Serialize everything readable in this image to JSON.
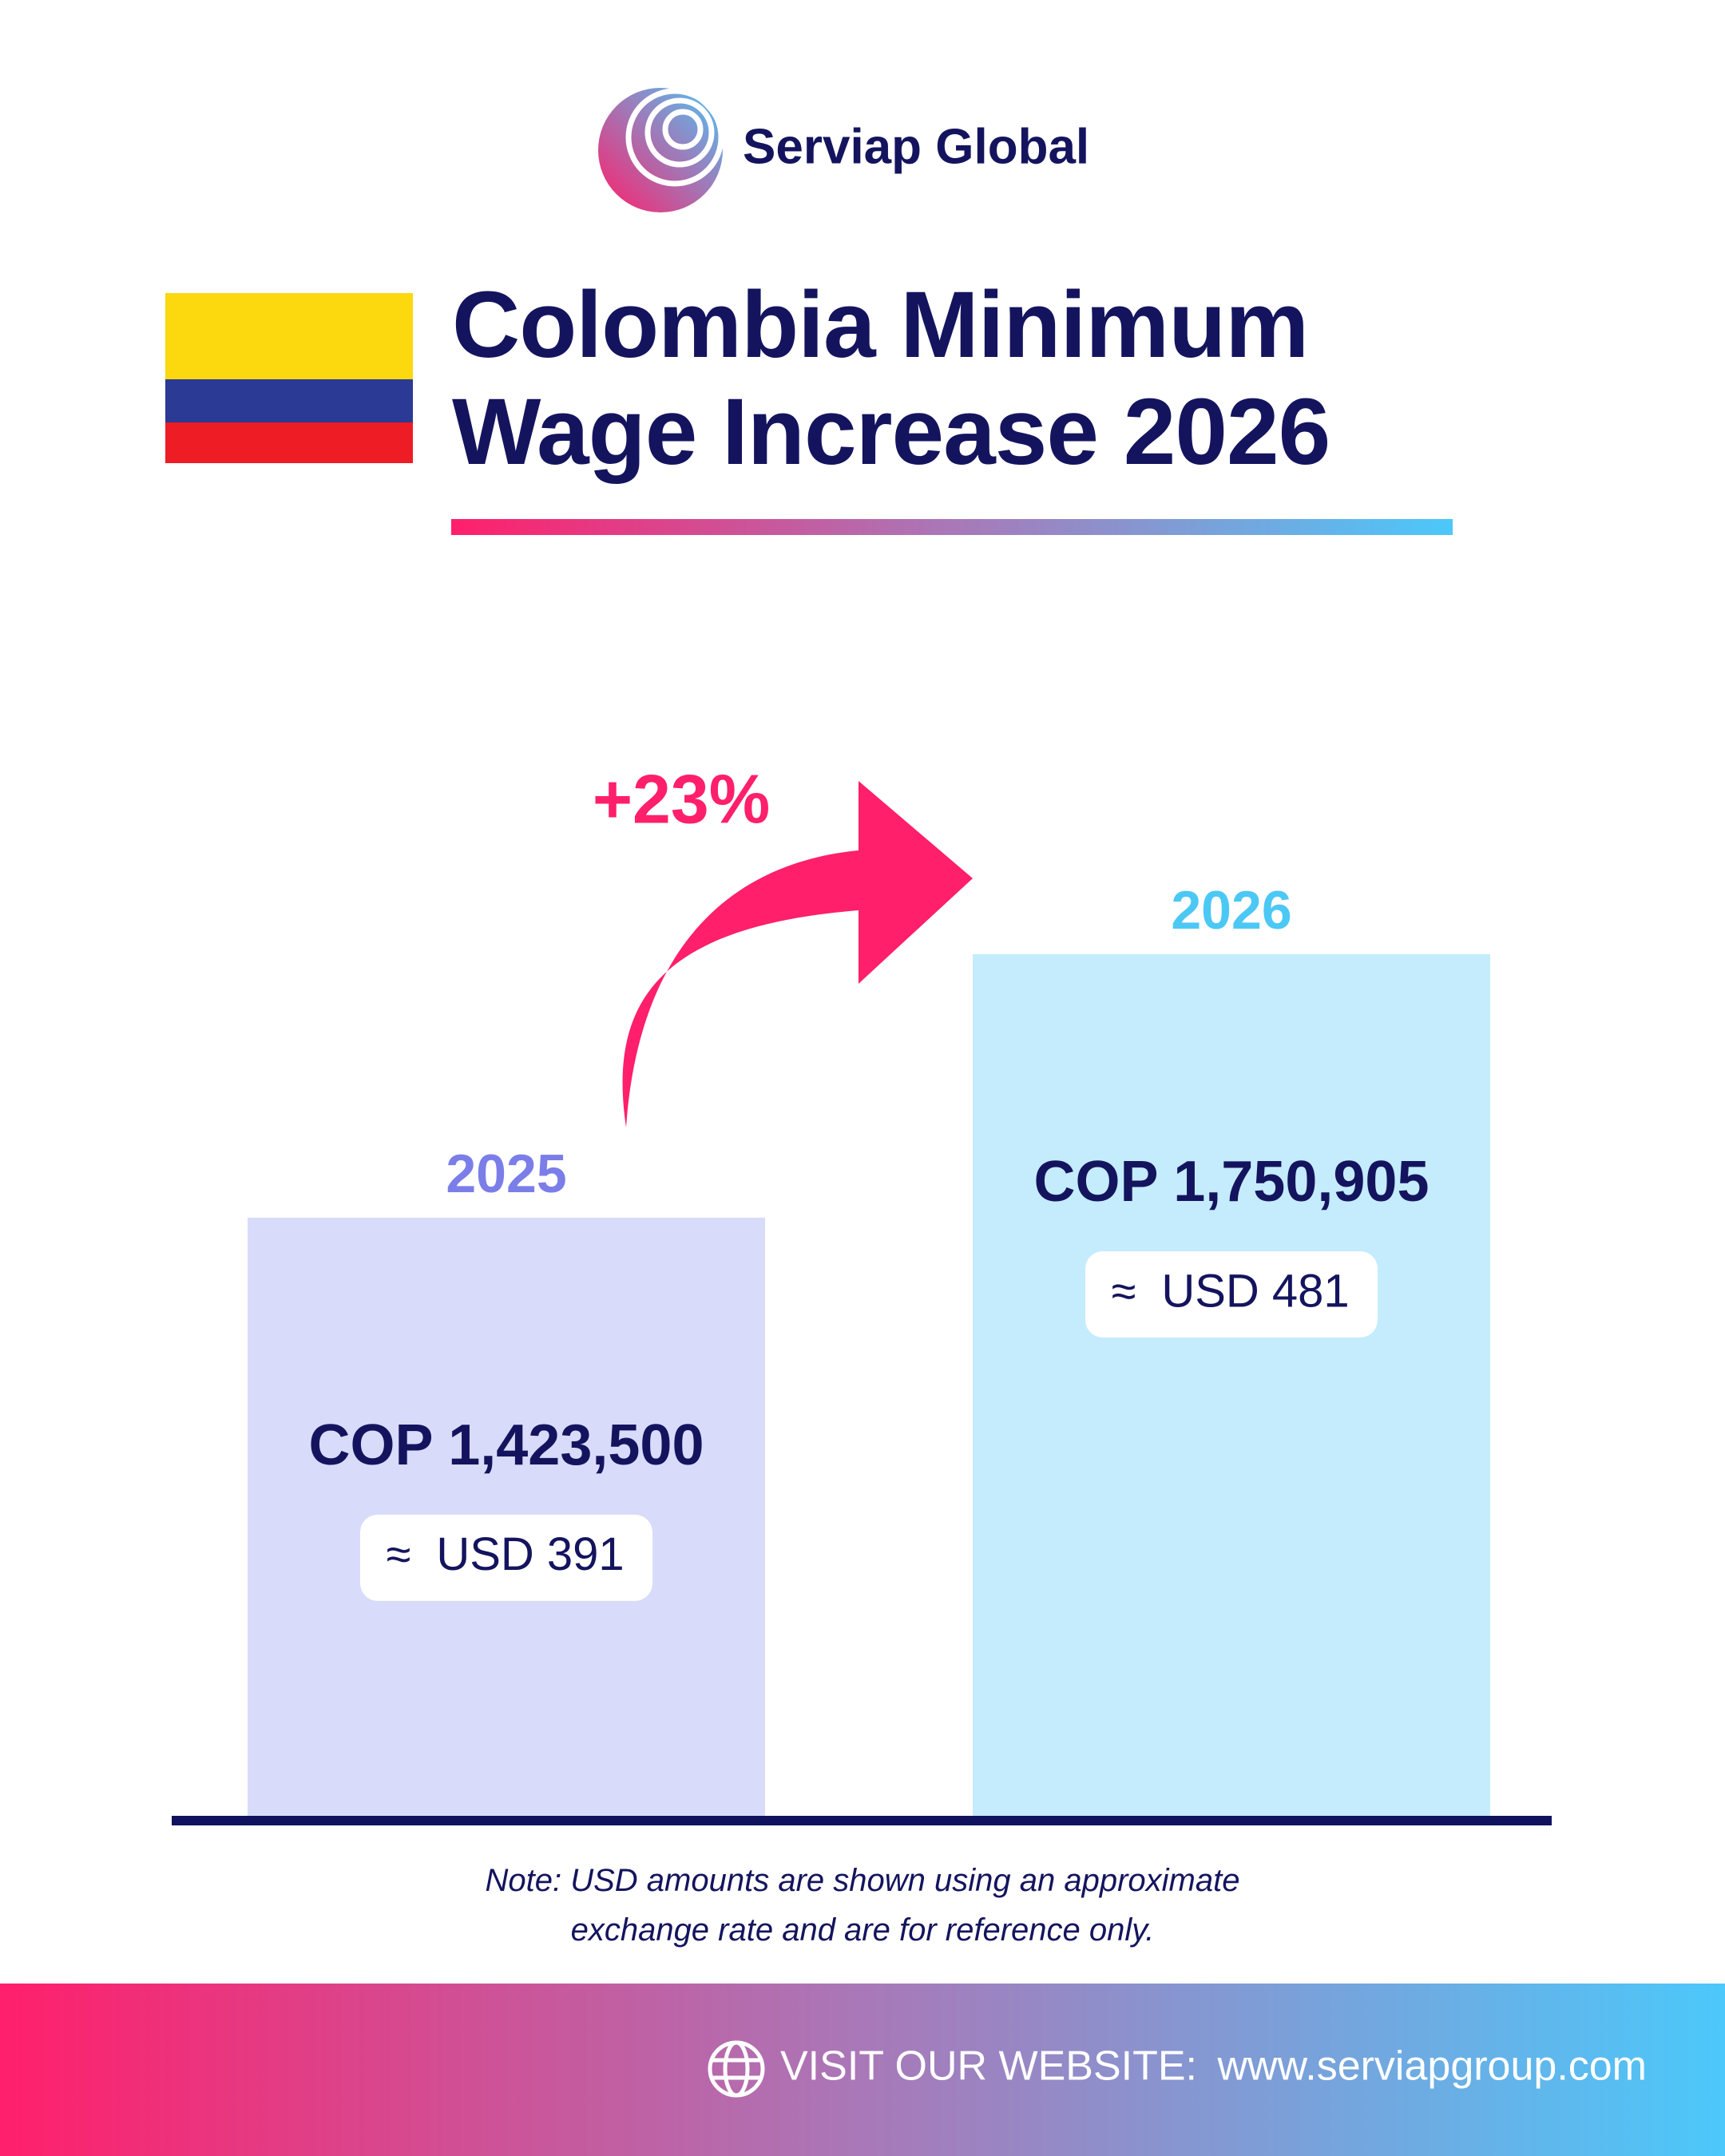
{
  "brand": "Serviap Global",
  "chart_data": {
    "type": "bar",
    "title": "Colombia Minimum Wage Increase 2026",
    "categories": [
      "2025",
      "2026"
    ],
    "category_colors": [
      "#7b7ee8",
      "#4cc8f5"
    ],
    "values": [
      1423500,
      1750905
    ],
    "value_labels": [
      "COP 1,423,500",
      "COP 1,750,905"
    ],
    "colors": [
      "#d9dbfa",
      "#c4ecfd"
    ],
    "usd_values": [
      391,
      481
    ],
    "usd_value_labels": [
      "USD 391",
      "USD 481"
    ],
    "approx_symbol": "≈",
    "change_value": 23,
    "change_label": "+23%",
    "ylim": [
      680000,
      2000000
    ]
  },
  "note": "Note: USD amounts are shown using an approximate exchange rate and are for reference only.",
  "footer": {
    "label": "VISIT OUR WEBSITE:",
    "url": "www.serviapgroup.com"
  }
}
